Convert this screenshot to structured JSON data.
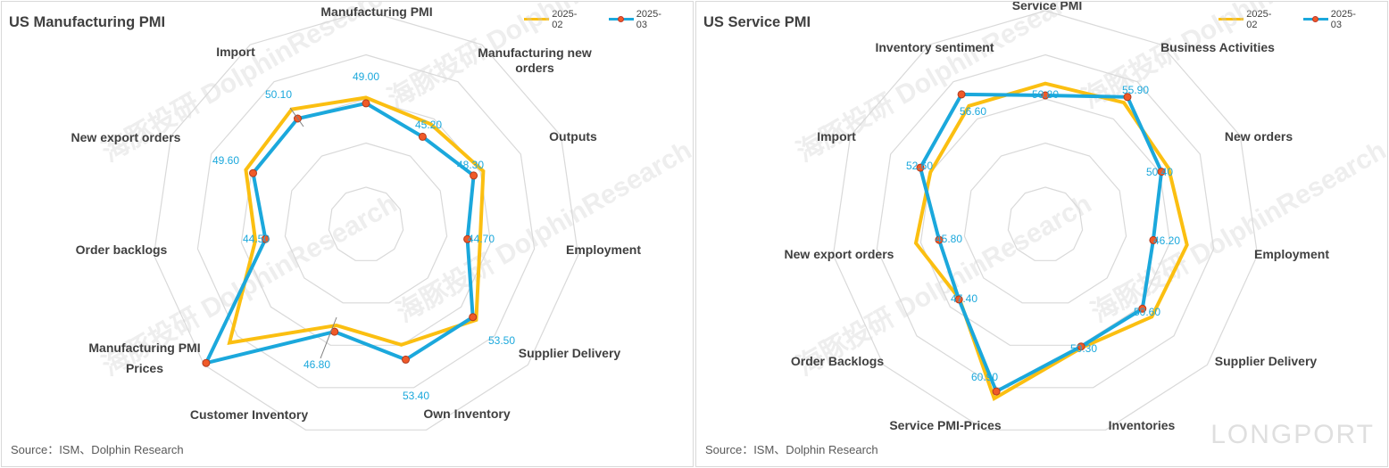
{
  "chart_data": [
    {
      "type": "radar",
      "title": "US Manufacturing PMI",
      "categories": [
        "Manufacturing PMI",
        "Manufacturing new orders",
        "Outputs",
        "Employment",
        "Supplier Delivery",
        "Own Inventory",
        "Customer Inventory",
        "Manufacturing PMI Prices",
        "Order backlogs",
        "New export orders",
        "Import"
      ],
      "series": [
        {
          "name": "2025-02",
          "values": [
            50.3,
            48.6,
            50.7,
            47.6,
            54.5,
            49.9,
            45.3,
            62.4,
            46.8,
            51.4,
            52.6
          ],
          "color": "#fbbf11",
          "markers": false
        },
        {
          "name": "2025-03",
          "values": [
            49.0,
            45.2,
            48.3,
            44.7,
            53.5,
            53.4,
            46.8,
            69.4,
            44.5,
            49.6,
            50.1
          ],
          "color": "#1ba8dc",
          "markers": true
        }
      ],
      "data_labels": [
        "49.00",
        "45.20",
        "48.30",
        "44.70",
        "53.50",
        "53.40",
        "46.80",
        "",
        "44.50",
        "49.60",
        "50.10"
      ],
      "range": [
        30,
        70
      ],
      "source": "Source：ISM、Dolphin Research"
    },
    {
      "type": "radar",
      "title": "US Service PMI",
      "categories": [
        "Service PMI",
        "Business Activities",
        "New orders",
        "Employment",
        "Supplier Delivery",
        "Inventories",
        "Service PMI-Prices",
        "Order Backlogs",
        "New export orders",
        "Import",
        "Inventory sentiment"
      ],
      "series": [
        {
          "name": "2025-02",
          "values": [
            53.5,
            54.4,
            52.2,
            53.9,
            53.4,
            50.6,
            62.6,
            47.2,
            51.1,
            50.1,
            53.5
          ],
          "color": "#fbbf11",
          "markers": false
        },
        {
          "name": "2025-03",
          "values": [
            50.8,
            55.9,
            50.4,
            46.2,
            50.6,
            50.3,
            60.9,
            47.4,
            45.8,
            52.6,
            56.6
          ],
          "color": "#1ba8dc",
          "markers": true
        }
      ],
      "data_labels": [
        "50.80",
        "55.90",
        "50.40",
        "46.20",
        "50.60",
        "50.30",
        "60.90",
        "47.40",
        "45.80",
        "52.60",
        "56.60"
      ],
      "range": [
        30,
        70
      ],
      "source": "Source：ISM、Dolphin Research"
    }
  ],
  "watermark_text": "海豚投研 DolphinResearch",
  "brand_text": "LONGPORT"
}
